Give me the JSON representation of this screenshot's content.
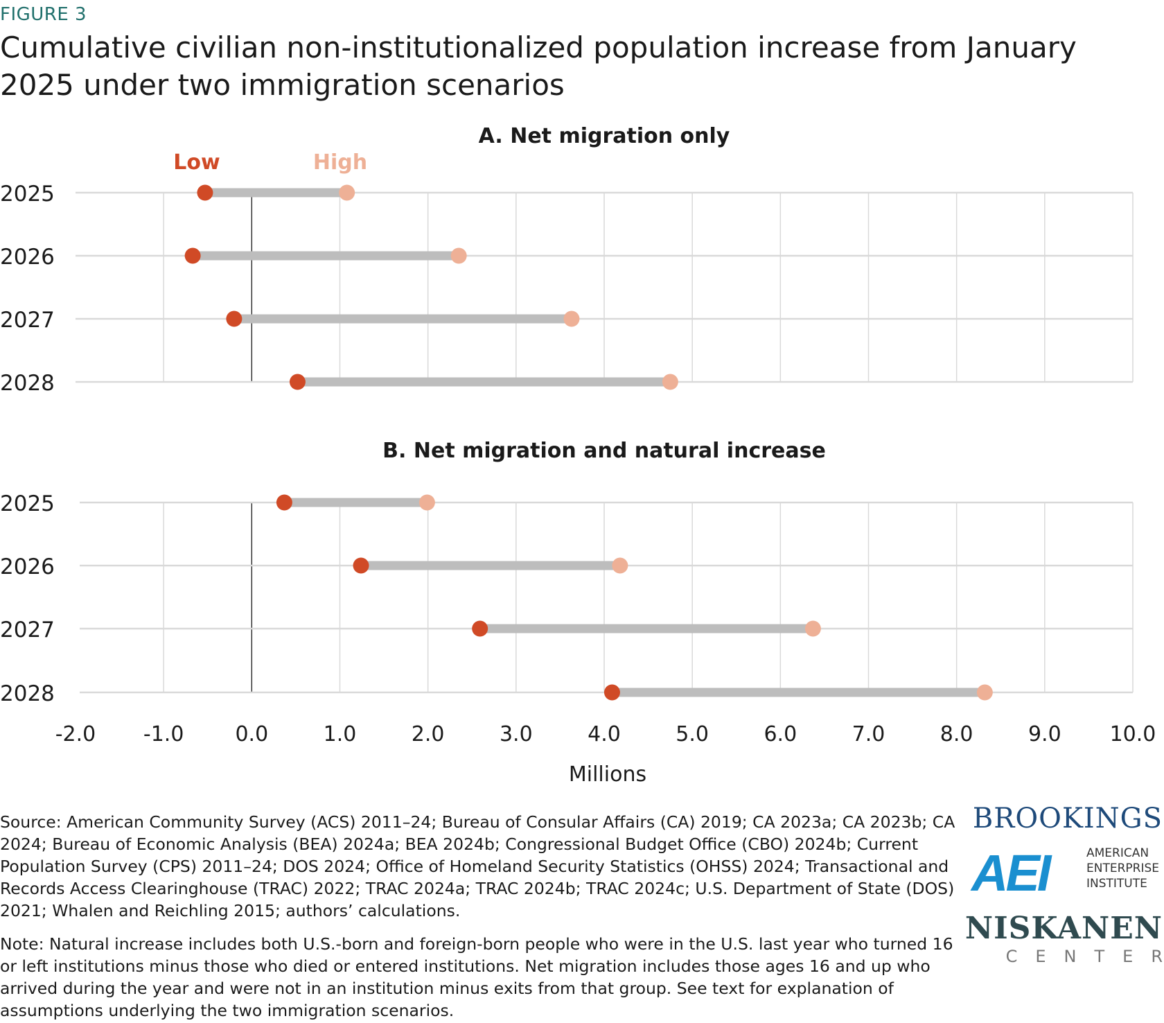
{
  "figure_label": "FIGURE 3",
  "title": "Cumulative civilian non-institutionalized population increase from January 2025 under two immigration scenarios",
  "legend": {
    "low": "Low",
    "high": "High"
  },
  "colors": {
    "low": "#d04a26",
    "high": "#eeb096",
    "bar": "#bdbdbd",
    "grid": "#d9d9d9",
    "zero_line": "#222222",
    "figure_label": "#1f6f6b"
  },
  "chart_data": [
    {
      "type": "dumbbell",
      "title": "A. Net migration only",
      "categories": [
        "2025",
        "2026",
        "2027",
        "2028"
      ],
      "series": [
        {
          "name": "Low",
          "values": [
            -0.53,
            -0.67,
            -0.2,
            0.52
          ]
        },
        {
          "name": "High",
          "values": [
            1.08,
            2.35,
            3.63,
            4.75
          ]
        }
      ],
      "xlim": [
        -2,
        10
      ],
      "grid": true
    },
    {
      "type": "dumbbell",
      "title": "B. Net migration and natural increase",
      "categories": [
        "2025",
        "2026",
        "2027",
        "2028"
      ],
      "series": [
        {
          "name": "Low",
          "values": [
            0.37,
            1.24,
            2.59,
            4.09
          ]
        },
        {
          "name": "High",
          "values": [
            1.99,
            4.18,
            6.37,
            8.32
          ]
        }
      ],
      "xlim": [
        -2,
        10
      ],
      "xticks": [
        "-2.0",
        "-1.0",
        "0.0",
        "1.0",
        "2.0",
        "3.0",
        "4.0",
        "5.0",
        "6.0",
        "7.0",
        "8.0",
        "9.0",
        "10.0"
      ],
      "xlabel": "Millions",
      "grid": true
    }
  ],
  "source": "Source: American Community Survey (ACS) 2011–24; Bureau of Consular Affairs (CA) 2019; CA 2023a; CA 2023b; CA 2024; Bureau of Economic Analysis (BEA) 2024a; BEA 2024b; Congressional Budget Office (CBO) 2024b; Current Population Survey (CPS) 2011–24; DOS 2024; Office of Homeland Security Statistics (OHSS) 2024; Transactional and Records Access Clearinghouse (TRAC) 2022; TRAC 2024a; TRAC 2024b; TRAC 2024c; U.S. Department of State (DOS) 2021; Whalen and Reichling 2015; authors’ calculations.",
  "note": "Note: Natural increase includes both U.S.-born and foreign-born people who were in the U.S. last year who turned 16 or left institutions minus those who died or entered institutions. Net migration includes those ages 16 and up who arrived during the year and were not in an institution minus exits from that group. See text for explanation of assumptions underlying the two immigration scenarios.",
  "logos": {
    "brookings": "BROOKINGS",
    "aei_mark": "AEI",
    "aei_text": "AMERICAN ENTERPRISE INSTITUTE",
    "niskanen": "NISKANEN",
    "niskanen_sub": "CENTER"
  }
}
